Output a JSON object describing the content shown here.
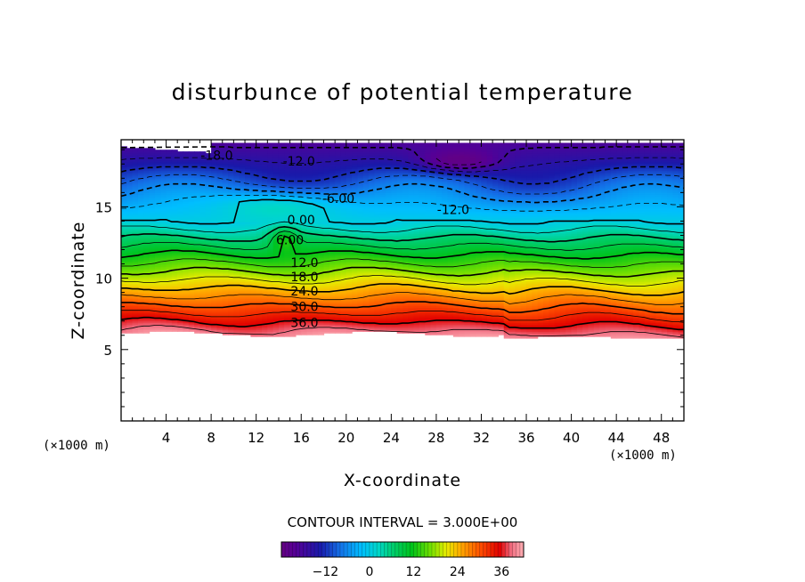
{
  "chart_data": {
    "type": "heatmap",
    "title": "disturbunce of potential temperature",
    "xlabel": "X-coordinate",
    "ylabel": "Z-coordinate",
    "x_unit": "(×1000 m)",
    "z_unit": "(×1000 m)",
    "xlim": [
      0,
      50
    ],
    "ylim": [
      0,
      19.7
    ],
    "xticks": [
      4,
      8,
      12,
      16,
      20,
      24,
      28,
      32,
      36,
      40,
      44,
      48
    ],
    "yticks": [
      5,
      10,
      15
    ],
    "contour_interval_text": "CONTOUR INTERVAL = 3.000E+00",
    "contour_interval": 3,
    "contour_labels": [
      {
        "text": "-18.0",
        "x": 8.5,
        "z": 18.6
      },
      {
        "text": "-12.0",
        "x": 15.8,
        "z": 18.2
      },
      {
        "text": "-6.00",
        "x": 19.3,
        "z": 15.6
      },
      {
        "text": "-12.0",
        "x": 29.5,
        "z": 14.8
      },
      {
        "text": "0.00",
        "x": 16.0,
        "z": 14.1
      },
      {
        "text": "6.00",
        "x": 15.0,
        "z": 12.7
      },
      {
        "text": "12.0",
        "x": 16.3,
        "z": 11.1
      },
      {
        "text": "18.0",
        "x": 16.3,
        "z": 10.1
      },
      {
        "text": "24.0",
        "x": 16.3,
        "z": 9.1
      },
      {
        "text": "30.0",
        "x": 16.3,
        "z": 8.0
      },
      {
        "text": "36.0",
        "x": 16.3,
        "z": 6.9
      }
    ],
    "colorbar": {
      "min": -24,
      "max": 42,
      "ticks": [
        -12,
        0,
        12,
        24,
        36
      ],
      "tick_labels": [
        "−12",
        "0",
        "12",
        "24",
        "36"
      ]
    }
  }
}
